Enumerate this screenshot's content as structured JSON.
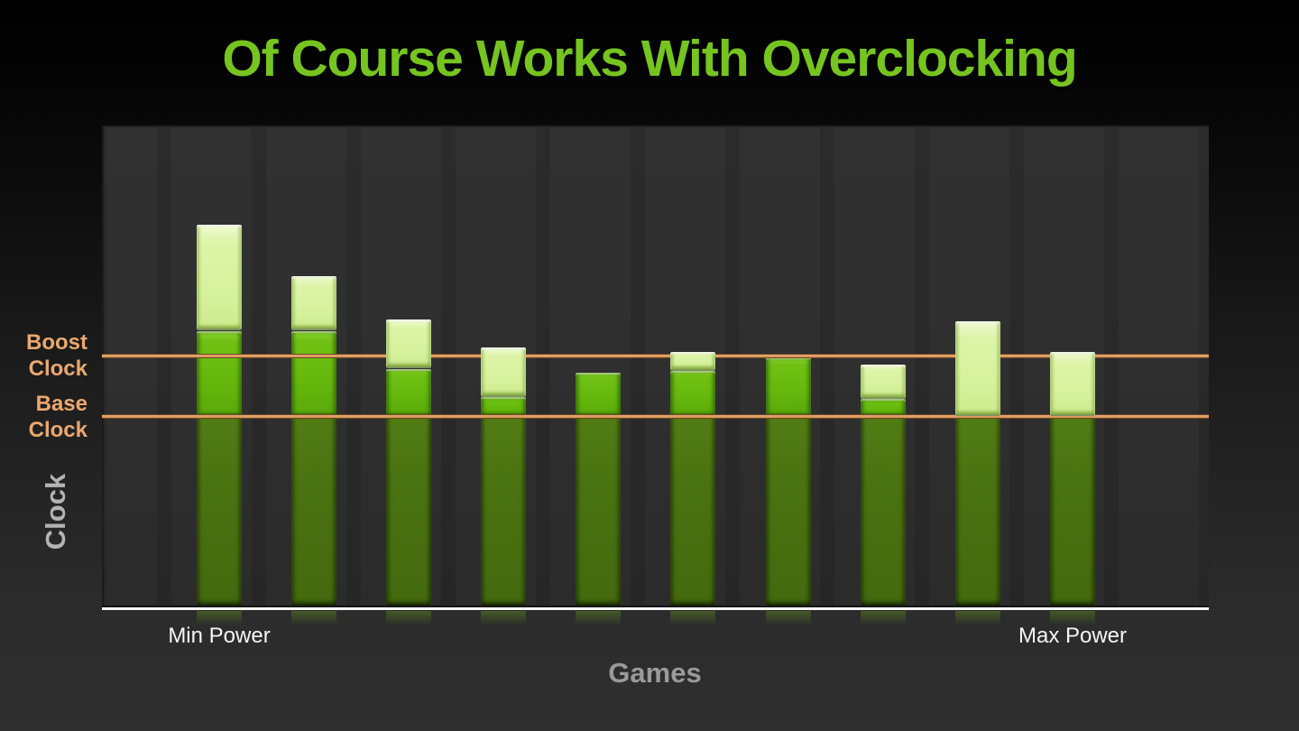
{
  "slide": {
    "title": "Of Course Works With Overclocking"
  },
  "labels": {
    "boost_lines": [
      "Boost",
      "Clock"
    ],
    "base_lines": [
      "Base",
      "Clock"
    ],
    "y_axis": "Clock",
    "x_axis": "Games",
    "min_power": "Min Power",
    "max_power": "Max Power"
  },
  "colors": {
    "title_green": "#76c41f",
    "guide_line_orange": "#d89c62",
    "guide_label_orange": "#eba86e",
    "bar_dark_green": "#4a7311",
    "bar_mid_green": "#66b90c",
    "bar_light_green": "#d6f19c",
    "axis_line_white": "#f8f8f8",
    "power_label_white": "#f5f5f5",
    "axis_title_gray": "#9a9a9a"
  },
  "chart_data": {
    "type": "bar",
    "subtype": "stacked-3d-columns",
    "xlabel": "Games",
    "ylabel": "Clock",
    "x_annotations": [
      {
        "label": "Min Power",
        "bar_index": 0
      },
      {
        "label": "Max Power",
        "bar_index": 9
      }
    ],
    "y_units": "relative clock, Base Clock = 1.0",
    "ylim": [
      0,
      2.53
    ],
    "grid": false,
    "legend": "none",
    "reference_lines": [
      {
        "label": "Boost Clock",
        "value": 1.32,
        "color": "#d89c62"
      },
      {
        "label": "Base Clock",
        "value": 1.0,
        "color": "#d89c62"
      }
    ],
    "segment_colors": {
      "dark_green_below_base": "#4a7311",
      "mid_green_base_to_mid": "#66b90c",
      "light_green_overclock_top": "#d6f19c"
    },
    "base": 1.0,
    "bars": [
      {
        "mid": 1.45,
        "top": 2.01
      },
      {
        "mid": 1.45,
        "top": 1.74
      },
      {
        "mid": 1.25,
        "top": 1.51
      },
      {
        "mid": 1.1,
        "top": 1.36
      },
      {
        "mid": 1.23,
        "top": 1.23
      },
      {
        "mid": 1.24,
        "top": 1.34
      },
      {
        "mid": 1.31,
        "top": 1.31
      },
      {
        "mid": 1.09,
        "top": 1.27
      },
      {
        "mid": 1.0,
        "top": 1.5
      },
      {
        "mid": 1.0,
        "top": 1.34
      }
    ]
  }
}
